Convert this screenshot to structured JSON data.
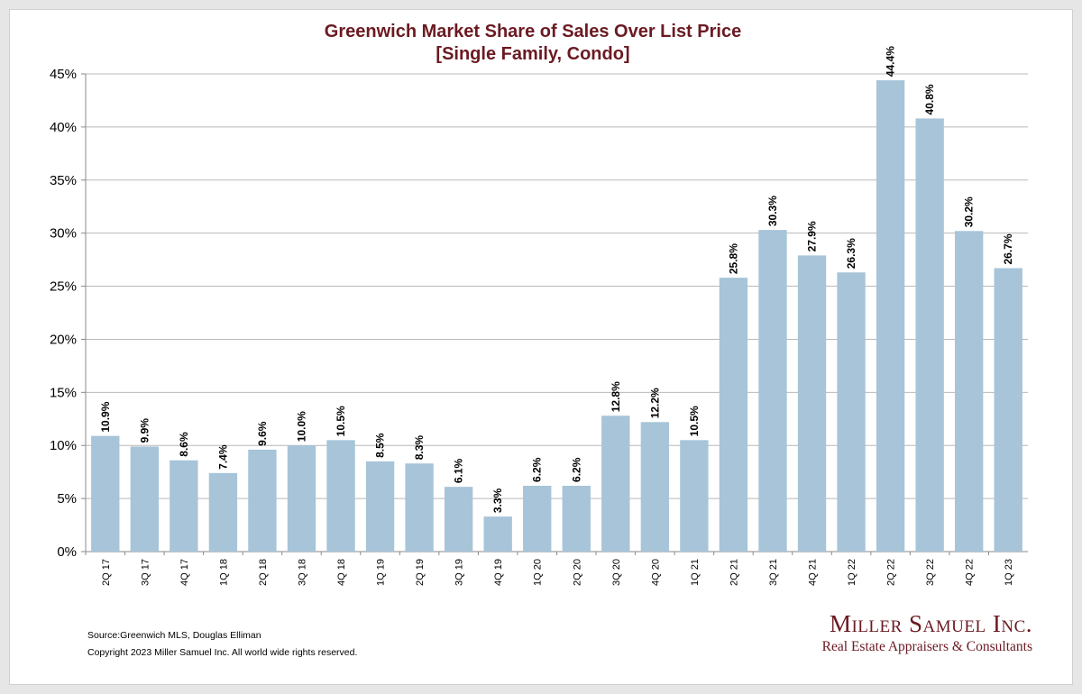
{
  "chart_data": {
    "type": "bar",
    "title": "Greenwich Market Share of Sales Over List Price",
    "subtitle": "[Single Family, Condo]",
    "categories": [
      "2Q 17",
      "3Q 17",
      "4Q 17",
      "1Q 18",
      "2Q 18",
      "3Q 18",
      "4Q 18",
      "1Q 19",
      "2Q 19",
      "3Q 19",
      "4Q 19",
      "1Q 20",
      "2Q 20",
      "3Q 20",
      "4Q 20",
      "1Q 21",
      "2Q 21",
      "3Q 21",
      "4Q 21",
      "1Q 22",
      "2Q 22",
      "3Q 22",
      "4Q 22",
      "1Q 23"
    ],
    "values": [
      10.9,
      9.9,
      8.6,
      7.4,
      9.6,
      10.0,
      10.5,
      8.5,
      8.3,
      6.1,
      3.3,
      6.2,
      6.2,
      12.8,
      12.2,
      10.5,
      25.8,
      30.3,
      27.9,
      26.3,
      44.4,
      40.8,
      30.2,
      26.7
    ],
    "data_labels": [
      "10.9%",
      "9.9%",
      "8.6%",
      "7.4%",
      "9.6%",
      "10.0%",
      "10.5%",
      "8.5%",
      "8.3%",
      "6.1%",
      "3.3%",
      "6.2%",
      "6.2%",
      "12.8%",
      "12.2%",
      "10.5%",
      "25.8%",
      "30.3%",
      "27.9%",
      "26.3%",
      "44.4%",
      "40.8%",
      "30.2%",
      "26.7%"
    ],
    "ylim": [
      0,
      45
    ],
    "yticks": [
      "0%",
      "5%",
      "10%",
      "15%",
      "20%",
      "25%",
      "30%",
      "35%",
      "40%",
      "45%"
    ],
    "grid": true,
    "legend": "none",
    "bar_color": "#a7c4d9",
    "title_color": "#6b1a22"
  },
  "footer": {
    "source": "Source:Greenwich MLS, Douglas Elliman",
    "copyright": "Copyright 2023 Miller Samuel Inc.  All world wide rights reserved."
  },
  "logo": {
    "name": "Miller Samuel Inc.",
    "tagline": "Real Estate Appraisers & Consultants"
  }
}
